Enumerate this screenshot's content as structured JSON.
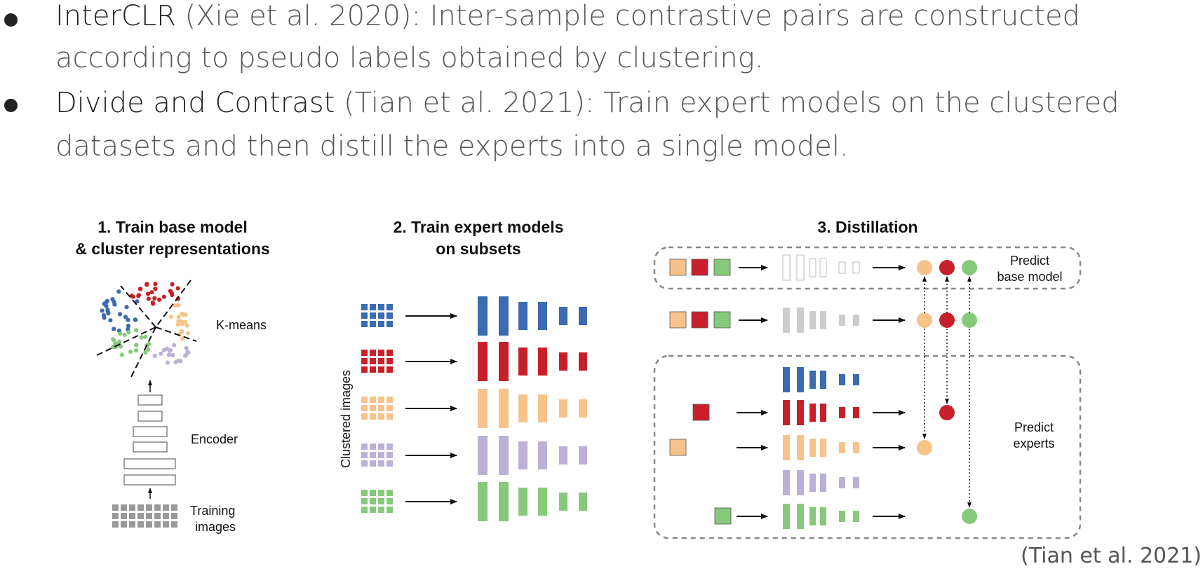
{
  "bullets": [
    {
      "term": "InterCLR",
      "line1_rest": " (Xie et al. 2020): Inter-sample contrastive pairs are constructed",
      "line2": "according to pseudo labels obtained by clustering."
    },
    {
      "term": "Divide and Contrast",
      "line1_rest": " (Tian et al. 2021): Train expert models on the clustered",
      "line2": "datasets and then distill the experts into a single model."
    }
  ],
  "citation": "(Tian et al. 2021)",
  "figure": {
    "panel1": {
      "title_line1": "1. Train base model",
      "title_line2": "& cluster representations",
      "kmeans_label": "K-means",
      "encoder_label": "Encoder",
      "training_label_line1": "Training",
      "training_label_line2": "images"
    },
    "panel2": {
      "title_line1": "2. Train expert models",
      "title_line2": "on subsets",
      "axis_label": "Clustered  images"
    },
    "panel3": {
      "title": "3. Distillation",
      "base_label_line1": "Predict",
      "base_label_line2": "base model",
      "experts_label_line1": "Predict",
      "experts_label_line2": "experts"
    }
  },
  "colors": {
    "blue": "#3b6bb0",
    "red": "#c8202a",
    "orange": "#f7c38a",
    "purple": "#bcb0d6",
    "green": "#86c97a",
    "gray": "#999999",
    "light_gray": "#cccccc",
    "text": "#555555"
  }
}
